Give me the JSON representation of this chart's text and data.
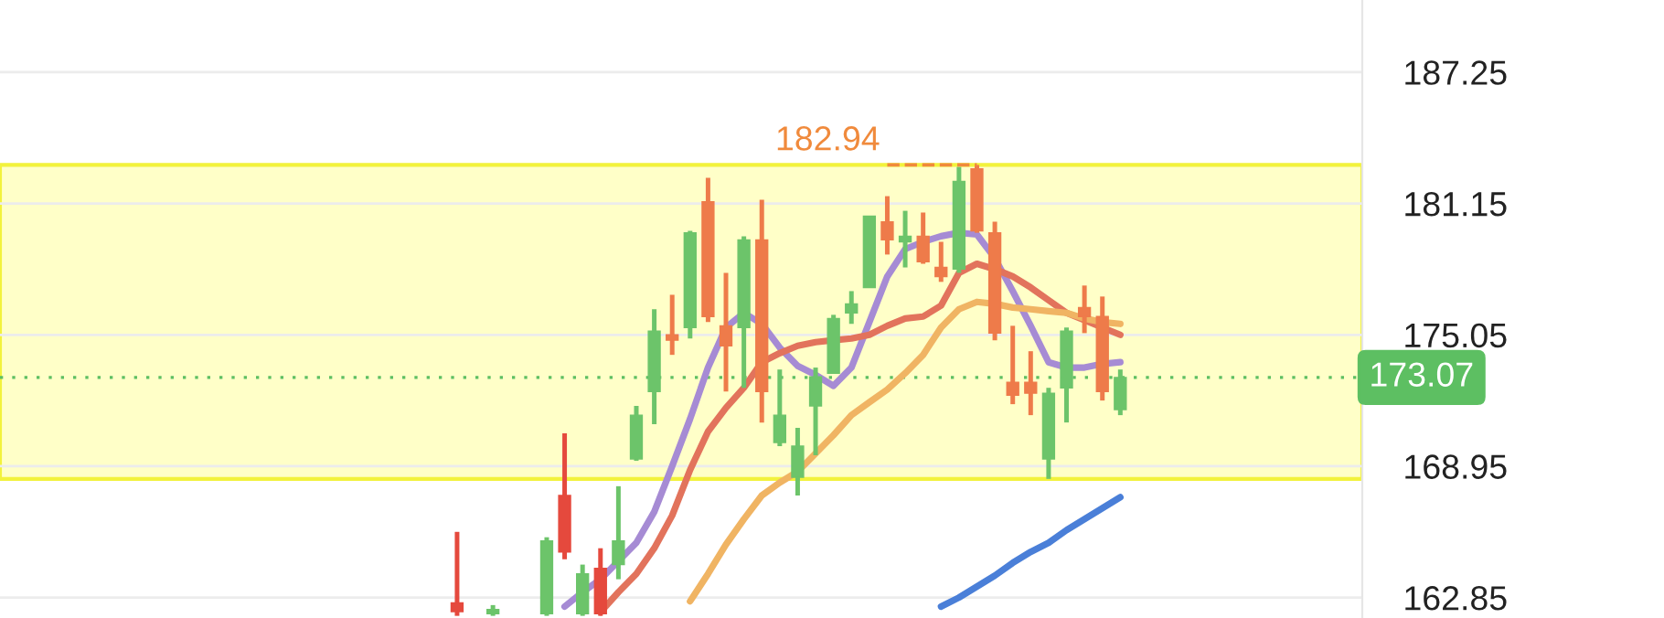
{
  "chart_data": {
    "type": "candlestick",
    "categories": [
      null,
      null,
      null,
      null,
      null,
      null,
      null,
      null,
      null,
      null,
      null,
      null,
      null,
      null,
      null,
      null,
      null,
      null,
      null,
      null,
      null,
      null,
      null,
      null,
      null,
      null,
      null,
      null,
      null,
      null,
      null,
      null,
      null,
      null,
      null,
      null,
      null,
      null,
      null,
      null,
      null,
      null,
      null,
      null,
      null,
      null,
      null,
      null,
      null,
      null,
      null,
      null,
      null,
      null,
      null,
      null,
      null,
      null,
      null,
      null,
      null,
      null,
      null,
      null,
      null,
      null,
      null,
      null,
      null,
      null,
      null,
      null,
      null,
      null,
      null,
      null
    ],
    "ohlc": [
      null,
      null,
      null,
      null,
      null,
      null,
      null,
      null,
      null,
      null,
      null,
      null,
      null,
      null,
      null,
      null,
      null,
      null,
      null,
      null,
      null,
      null,
      null,
      null,
      null,
      [
        162.6,
        165.9,
        162.0,
        162.2
      ],
      null,
      [
        162.1,
        162.5,
        162.0,
        162.3
      ],
      null,
      null,
      [
        162.1,
        165.65,
        162.0,
        165.48
      ],
      [
        167.59,
        170.48,
        164.63,
        164.97
      ],
      [
        162.1,
        164.38,
        162.0,
        163.95
      ],
      [
        164.21,
        165.14,
        162.0,
        162.1
      ],
      [
        164.38,
        168.02,
        163.7,
        165.48
      ],
      [
        169.29,
        171.75,
        169.2,
        171.32
      ],
      [
        172.42,
        176.24,
        170.9,
        175.22
      ],
      [
        175.05,
        176.91,
        174.12,
        174.8
      ],
      [
        175.39,
        179.88,
        174.88,
        179.79
      ],
      [
        181.23,
        182.34,
        175.64,
        175.9
      ],
      [
        175.47,
        177.93,
        172.42,
        174.54
      ],
      [
        175.39,
        179.63,
        172.59,
        179.46
      ],
      [
        179.46,
        181.32,
        170.98,
        172.42
      ],
      [
        170.05,
        173.44,
        169.88,
        171.32
      ],
      [
        168.44,
        170.73,
        167.59,
        169.88
      ],
      [
        171.75,
        173.53,
        169.46,
        173.1
      ],
      [
        173.27,
        175.98,
        173.27,
        175.81
      ],
      [
        176.07,
        177.08,
        175.56,
        176.49
      ],
      [
        177.25,
        180.56,
        177.25,
        180.56
      ],
      [
        180.3,
        181.49,
        178.78,
        179.46
      ],
      [
        179.37,
        180.81,
        178.18,
        179.63
      ],
      [
        179.63,
        180.73,
        178.35,
        178.44
      ],
      [
        178.18,
        179.37,
        177.51,
        177.76
      ],
      [
        178.1,
        182.85,
        177.93,
        182.17
      ],
      [
        182.76,
        182.94,
        179.79,
        179.88
      ],
      [
        179.79,
        180.3,
        174.8,
        175.13
      ],
      [
        172.85,
        175.47,
        171.83,
        172.25
      ],
      [
        172.85,
        174.29,
        171.32,
        172.34
      ],
      [
        169.29,
        172.59,
        168.36,
        172.34
      ],
      [
        172.59,
        175.39,
        170.98,
        175.22
      ],
      [
        176.32,
        177.34,
        175.13,
        175.9
      ],
      [
        175.9,
        176.83,
        172.0,
        172.42
      ],
      [
        171.58,
        173.44,
        171.32,
        173.07
      ],
      null,
      null,
      null,
      null,
      null,
      null,
      null,
      null,
      null,
      null,
      null,
      null,
      null
    ],
    "colors": [
      null,
      null,
      null,
      null,
      null,
      null,
      null,
      null,
      null,
      null,
      null,
      null,
      null,
      null,
      null,
      null,
      null,
      null,
      null,
      null,
      null,
      null,
      null,
      null,
      null,
      "#e5493d",
      null,
      "#6cc46a",
      null,
      null,
      "#6cc46a",
      "#e5493d",
      "#6cc46a",
      "#e5493d",
      "#6cc46a",
      "#6cc46a",
      "#6cc46a",
      "#ee7b4a",
      "#6cc46a",
      "#ee7b4a",
      "#ee7b4a",
      "#6cc46a",
      "#ee7b4a",
      "#6cc46a",
      "#6cc46a",
      "#6cc46a",
      "#6cc46a",
      "#6cc46a",
      "#6cc46a",
      "#ee7b4a",
      "#6cc46a",
      "#ee7b4a",
      "#ee7b4a",
      "#6cc46a",
      "#ee7b4a",
      "#ee7b4a",
      "#ee7b4a",
      "#ee7b4a",
      "#6cc46a",
      "#6cc46a",
      "#ee7b4a",
      "#ee7b4a",
      "#6cc46a",
      null,
      null,
      null,
      null,
      null,
      null,
      null,
      null,
      null,
      null,
      null,
      null,
      null
    ],
    "series": [
      {
        "type": "line",
        "color": "#a68bd4",
        "values": [
          null,
          null,
          null,
          null,
          null,
          null,
          null,
          null,
          null,
          null,
          null,
          null,
          null,
          null,
          null,
          null,
          null,
          null,
          null,
          null,
          null,
          null,
          null,
          null,
          null,
          null,
          null,
          null,
          null,
          null,
          null,
          162.43,
          163.1,
          163.7,
          164.54,
          165.39,
          166.83,
          168.95,
          171.15,
          173.53,
          175.39,
          176.07,
          175.56,
          174.46,
          173.61,
          173.19,
          172.68,
          173.53,
          175.64,
          177.76,
          179.03,
          179.37,
          179.63,
          179.79,
          179.71,
          178.61,
          177.08,
          175.47,
          173.78,
          173.53,
          173.53,
          173.7,
          173.78,
          null,
          null,
          null,
          null,
          null,
          null,
          null,
          null,
          null,
          null,
          null,
          null,
          null
        ]
      },
      {
        "type": "line",
        "color": "#e2735c",
        "values": [
          null,
          null,
          null,
          null,
          null,
          null,
          null,
          null,
          null,
          null,
          null,
          null,
          null,
          null,
          null,
          null,
          null,
          null,
          null,
          null,
          null,
          null,
          null,
          null,
          null,
          null,
          null,
          null,
          null,
          null,
          null,
          null,
          null,
          162.17,
          163.1,
          163.95,
          165.14,
          166.66,
          168.78,
          170.56,
          171.66,
          172.59,
          173.78,
          174.2,
          174.54,
          174.71,
          174.8,
          174.88,
          175.05,
          175.47,
          175.81,
          175.9,
          176.41,
          177.93,
          178.35,
          178.1,
          177.76,
          177.25,
          176.66,
          176.07,
          175.73,
          175.39,
          175.05,
          null,
          null,
          null,
          null,
          null,
          null,
          null,
          null,
          null,
          null,
          null,
          null,
          null
        ]
      },
      {
        "type": "line",
        "color": "#f0b463",
        "values": [
          null,
          null,
          null,
          null,
          null,
          null,
          null,
          null,
          null,
          null,
          null,
          null,
          null,
          null,
          null,
          null,
          null,
          null,
          null,
          null,
          null,
          null,
          null,
          null,
          null,
          null,
          null,
          null,
          null,
          null,
          null,
          null,
          null,
          null,
          null,
          null,
          null,
          null,
          162.68,
          163.95,
          165.31,
          166.49,
          167.59,
          168.19,
          168.7,
          169.54,
          170.39,
          171.32,
          171.92,
          172.51,
          173.27,
          174.12,
          175.39,
          176.24,
          176.58,
          176.49,
          176.32,
          176.24,
          176.15,
          176.07,
          175.81,
          175.64,
          175.56,
          null,
          null,
          null,
          null,
          null,
          null,
          null,
          null,
          null,
          null,
          null,
          null,
          null
        ]
      },
      {
        "type": "line",
        "color": "#4a7fd8",
        "values": [
          null,
          null,
          null,
          null,
          null,
          null,
          null,
          null,
          null,
          null,
          null,
          null,
          null,
          null,
          null,
          null,
          null,
          null,
          null,
          null,
          null,
          null,
          null,
          null,
          null,
          null,
          null,
          null,
          null,
          null,
          null,
          null,
          null,
          null,
          null,
          null,
          null,
          null,
          null,
          null,
          null,
          null,
          null,
          null,
          null,
          null,
          null,
          null,
          null,
          null,
          null,
          null,
          162.43,
          162.85,
          163.36,
          163.87,
          164.46,
          164.97,
          165.39,
          165.98,
          166.49,
          167.0,
          167.51,
          null,
          null,
          null,
          null,
          null,
          null,
          null,
          null,
          null,
          null,
          null,
          null,
          null
        ]
      }
    ],
    "ylim": [
      161.9,
      190.6
    ],
    "yticks": [
      162.85,
      168.95,
      175.05,
      181.15,
      187.25
    ],
    "grid": "y",
    "annotations": [
      {
        "text": "182.94",
        "y": 182.94
      }
    ],
    "ref_lines": [
      {
        "axis": "y",
        "value": 173.07,
        "label": "173.07",
        "color": "#5dbf62",
        "line_style": "dotted"
      }
    ],
    "bands": [
      {
        "axis": "y",
        "from": 168.36,
        "to": 182.94,
        "color": "#ffffc8"
      }
    ]
  }
}
